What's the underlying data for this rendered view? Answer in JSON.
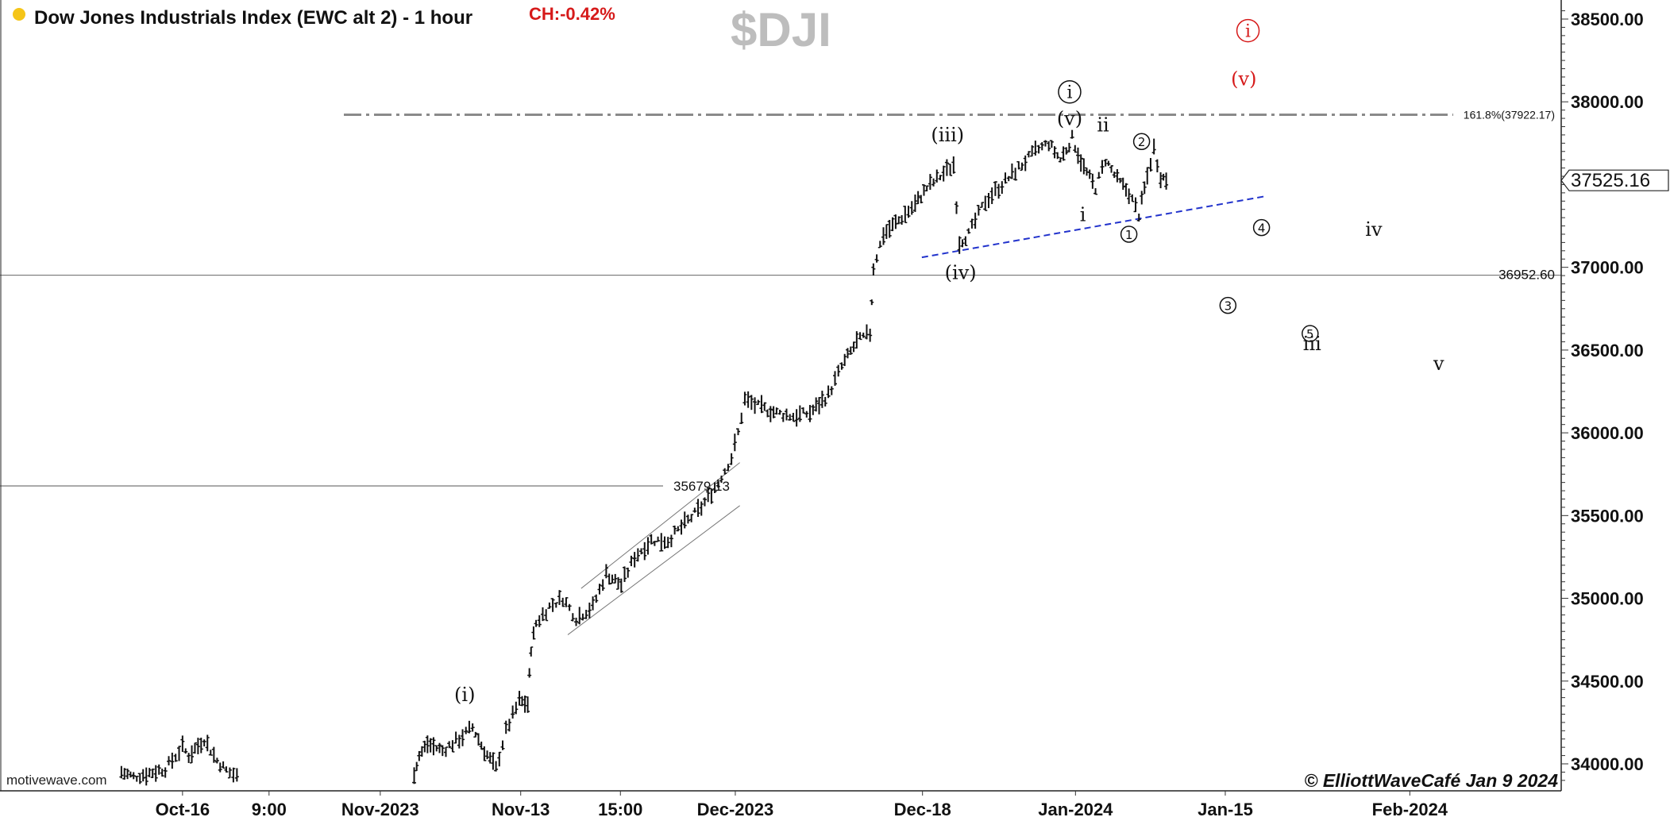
{
  "header": {
    "title": "Dow Jones Industrials Index (EWC alt 2) - 1 hour",
    "change": "CH:-0.42%",
    "symbol": "$DJI",
    "status_color": "#f5c518",
    "change_color": "#d61a1a"
  },
  "footer": {
    "watermark": "motivewave.com",
    "copyright": "© ElliottWaveCafé Jan 9 2024"
  },
  "chart_data": {
    "type": "ohlc-bar",
    "ylim": [
      33870,
      38580
    ],
    "y_ticks": [
      "38500.00",
      "38000.00",
      "37500.00",
      "37000.00",
      "36500.00",
      "36000.00",
      "35500.00",
      "35000.00",
      "34500.00",
      "34000.00"
    ],
    "y_tick_values": [
      38500,
      38000,
      37500,
      37000,
      36500,
      36000,
      35500,
      35000,
      34500,
      34000
    ],
    "x_ticks": [
      "Oct-16",
      "9:00",
      "Nov-2023",
      "Nov-13",
      "15:00",
      "Dec-2023",
      "Dec-18",
      "Jan-2024",
      "Jan-15",
      "Feb-2024"
    ],
    "x_tick_positions": [
      0.1093,
      0.1611,
      0.2277,
      0.3118,
      0.3715,
      0.4403,
      0.5524,
      0.644,
      0.7337,
      0.8442
    ],
    "last_price": "37525.16",
    "price_path": [
      [
        0.0727,
        33950
      ],
      [
        0.08,
        33920
      ],
      [
        0.099,
        33970
      ],
      [
        0.1093,
        34100
      ],
      [
        0.113,
        34050
      ],
      [
        0.1223,
        34150
      ],
      [
        0.13,
        34020
      ],
      [
        0.1355,
        33960
      ],
      [
        0.144,
        33910
      ],
      [
        0.248,
        33950
      ],
      [
        0.251,
        34050
      ],
      [
        0.256,
        34120
      ],
      [
        0.265,
        34080
      ],
      [
        0.275,
        34150
      ],
      [
        0.283,
        34220
      ],
      [
        0.29,
        34080
      ],
      [
        0.297,
        33970
      ],
      [
        0.303,
        34200
      ],
      [
        0.311,
        34380
      ],
      [
        0.316,
        34360
      ],
      [
        0.318,
        34700
      ],
      [
        0.321,
        34850
      ],
      [
        0.329,
        34950
      ],
      [
        0.337,
        35000
      ],
      [
        0.345,
        34880
      ],
      [
        0.355,
        34950
      ],
      [
        0.363,
        35150
      ],
      [
        0.372,
        35080
      ],
      [
        0.38,
        35250
      ],
      [
        0.39,
        35350
      ],
      [
        0.4,
        35350
      ],
      [
        0.41,
        35450
      ],
      [
        0.42,
        35550
      ],
      [
        0.43,
        35700
      ],
      [
        0.438,
        35850
      ],
      [
        0.442,
        36000
      ],
      [
        0.446,
        36200
      ],
      [
        0.456,
        36150
      ],
      [
        0.465,
        36120
      ],
      [
        0.475,
        36100
      ],
      [
        0.485,
        36120
      ],
      [
        0.496,
        36230
      ],
      [
        0.504,
        36400
      ],
      [
        0.513,
        36550
      ],
      [
        0.521,
        36600
      ],
      [
        0.523,
        37000
      ],
      [
        0.529,
        37200
      ],
      [
        0.54,
        37300
      ],
      [
        0.548,
        37380
      ],
      [
        0.555,
        37480
      ],
      [
        0.563,
        37550
      ],
      [
        0.571,
        37620
      ],
      [
        0.5745,
        37150
      ],
      [
        0.58,
        37200
      ],
      [
        0.59,
        37400
      ],
      [
        0.6,
        37500
      ],
      [
        0.61,
        37600
      ],
      [
        0.62,
        37700
      ],
      [
        0.628,
        37750
      ],
      [
        0.635,
        37650
      ],
      [
        0.642,
        37780
      ],
      [
        0.649,
        37600
      ],
      [
        0.656,
        37480
      ],
      [
        0.662,
        37650
      ],
      [
        0.669,
        37530
      ],
      [
        0.676,
        37450
      ],
      [
        0.682,
        37320
      ],
      [
        0.687,
        37550
      ],
      [
        0.691,
        37720
      ],
      [
        0.695,
        37550
      ],
      [
        0.7,
        37520
      ]
    ],
    "horizontal_lines": [
      {
        "label": "36952.60",
        "value": 36952.6
      },
      {
        "label": "35679.13",
        "value": 35679.13
      },
      {
        "label": "161.8%(37922.17)",
        "value": 37922.17
      }
    ],
    "trendline": {
      "x": [
        0.552,
        0.758
      ],
      "y": [
        37060,
        37430
      ]
    },
    "channel_upper": {
      "x": [
        0.348,
        0.443
      ],
      "y": [
        35060,
        35820
      ]
    },
    "channel_lower": {
      "x": [
        0.34,
        0.443
      ],
      "y": [
        34780,
        35560
      ]
    },
    "wave_labels": [
      {
        "text": "(i)",
        "x": 0.2783,
        "y": 34380,
        "color": "black"
      },
      {
        "text": "(iii)",
        "x": 0.5674,
        "y": 37760,
        "color": "black"
      },
      {
        "text": "(iv)",
        "x": 0.5752,
        "y": 36930,
        "color": "black"
      },
      {
        "text": "(v)",
        "x": 0.6405,
        "y": 37860,
        "color": "black"
      },
      {
        "text": "ii",
        "x": 0.6605,
        "y": 37820,
        "color": "black"
      },
      {
        "text": "i",
        "x": 0.6484,
        "y": 37280,
        "color": "black"
      },
      {
        "text": "iv",
        "x": 0.8226,
        "y": 37190,
        "color": "black"
      },
      {
        "text": "iii",
        "x": 0.7857,
        "y": 36500,
        "color": "black"
      },
      {
        "text": "v",
        "x": 0.8615,
        "y": 36380,
        "color": "black"
      },
      {
        "text": "(v)",
        "x": 0.7448,
        "y": 38100,
        "color": "red"
      }
    ],
    "circled_labels": [
      {
        "text": "i",
        "x": 0.6405,
        "y": 38060,
        "color": "black"
      },
      {
        "text": "2",
        "x": 0.6836,
        "y": 37760,
        "color": "black"
      },
      {
        "text": "1",
        "x": 0.676,
        "y": 37200,
        "color": "black"
      },
      {
        "text": "4",
        "x": 0.7554,
        "y": 37240,
        "color": "black"
      },
      {
        "text": "3",
        "x": 0.7353,
        "y": 36770,
        "color": "black"
      },
      {
        "text": "5",
        "x": 0.7845,
        "y": 36600,
        "color": "black"
      },
      {
        "text": "i",
        "x": 0.7473,
        "y": 38430,
        "color": "red"
      }
    ]
  }
}
